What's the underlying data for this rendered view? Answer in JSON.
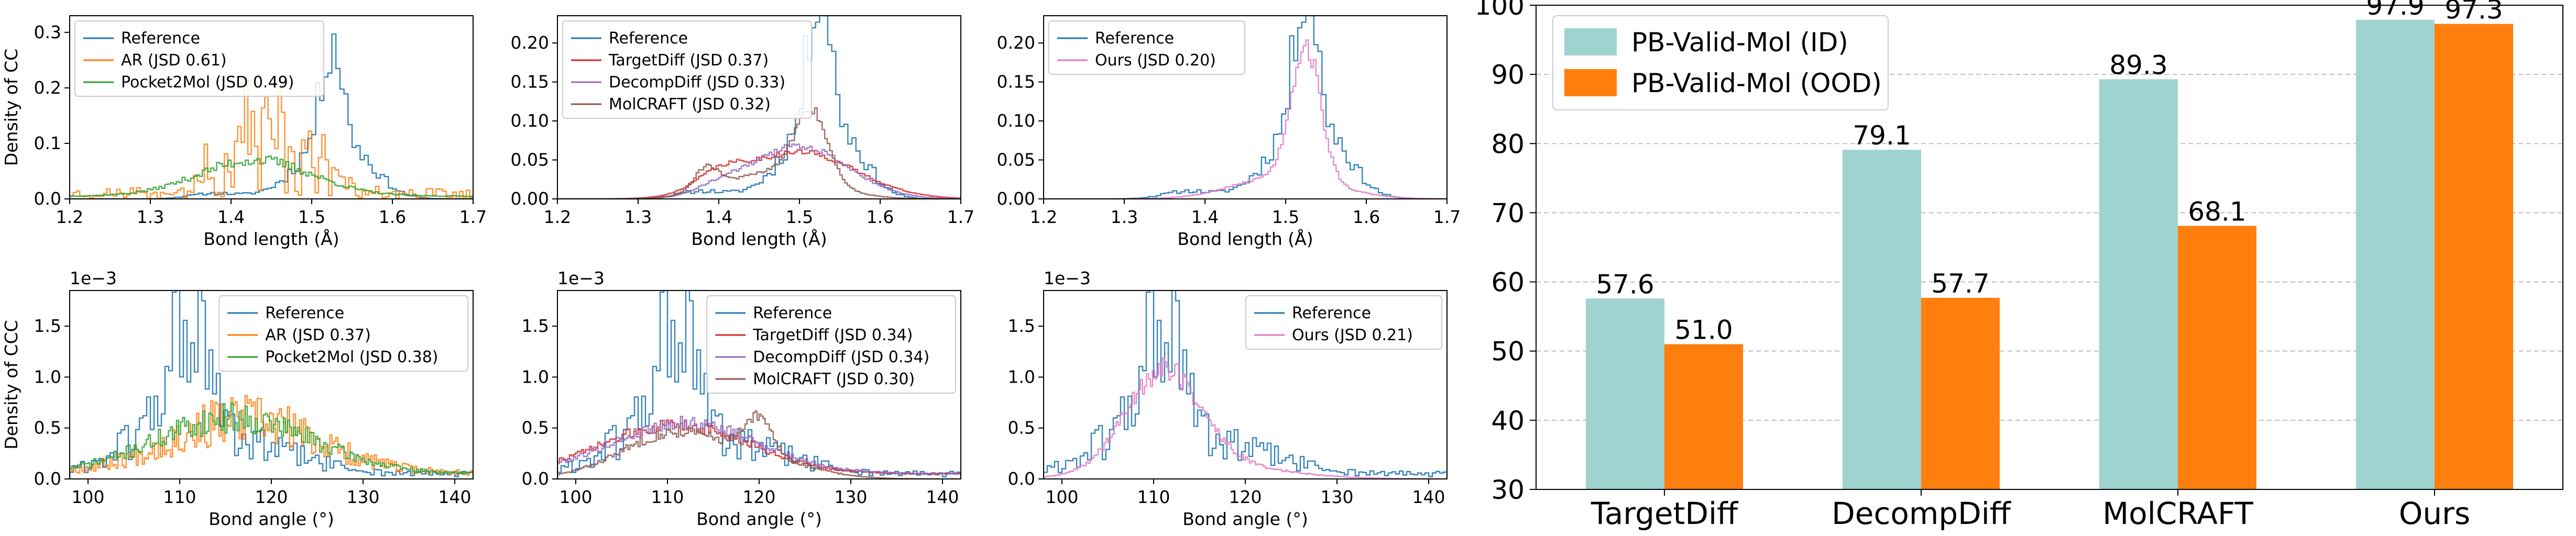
{
  "chart_data": [
    {
      "id": "cc_baselines",
      "type": "histogram-step",
      "ylabel": "Density of CC",
      "xlabel": "Bond length (Å)",
      "xlim": [
        1.2,
        1.7
      ],
      "ylim": [
        0,
        0.33
      ],
      "yticks": [
        "0.0",
        "0.1",
        "0.2",
        "0.3"
      ],
      "xticks": [
        "1.2",
        "1.3",
        "1.4",
        "1.5",
        "1.6",
        "1.7"
      ],
      "offset_text": "",
      "legend_position": "upper left",
      "series": [
        {
          "name": "Reference",
          "color": "#1f77b4",
          "shape": "ref_cc"
        },
        {
          "name": "AR (JSD 0.61)",
          "color": "#ff7f0e",
          "shape": "ar_cc"
        },
        {
          "name": "Pocket2Mol (JSD 0.49)",
          "color": "#2ca02c",
          "shape": "p2m_cc"
        }
      ]
    },
    {
      "id": "cc_diffusion",
      "type": "histogram-step",
      "ylabel": "",
      "xlabel": "Bond length (Å)",
      "xlim": [
        1.2,
        1.7
      ],
      "ylim": [
        0,
        0.235
      ],
      "yticks": [
        "0.00",
        "0.05",
        "0.10",
        "0.15",
        "0.20"
      ],
      "xticks": [
        "1.2",
        "1.3",
        "1.4",
        "1.5",
        "1.6",
        "1.7"
      ],
      "offset_text": "",
      "legend_position": "upper left",
      "series": [
        {
          "name": "Reference",
          "color": "#1f77b4",
          "shape": "ref_cc"
        },
        {
          "name": "TargetDiff (JSD 0.37)",
          "color": "#d62728",
          "shape": "td_cc"
        },
        {
          "name": "DecompDiff (JSD 0.33)",
          "color": "#9467bd",
          "shape": "dd_cc"
        },
        {
          "name": "MolCRAFT (JSD 0.32)",
          "color": "#8c564b",
          "shape": "mc_cc"
        }
      ]
    },
    {
      "id": "cc_ours",
      "type": "histogram-step",
      "ylabel": "",
      "xlabel": "Bond length (Å)",
      "xlim": [
        1.2,
        1.7
      ],
      "ylim": [
        0,
        0.235
      ],
      "yticks": [
        "0.00",
        "0.05",
        "0.10",
        "0.15",
        "0.20"
      ],
      "xticks": [
        "1.2",
        "1.3",
        "1.4",
        "1.5",
        "1.6",
        "1.7"
      ],
      "offset_text": "",
      "legend_position": "upper left",
      "series": [
        {
          "name": "Reference",
          "color": "#1f77b4",
          "shape": "ref_cc"
        },
        {
          "name": "Ours (JSD 0.20)",
          "color": "#e377c2",
          "shape": "ours_cc"
        }
      ]
    },
    {
      "id": "ccc_baselines",
      "type": "histogram-step",
      "ylabel": "Density of CCC",
      "xlabel": "Bond angle (°)",
      "xlim": [
        98,
        142
      ],
      "ylim": [
        0,
        0.00185
      ],
      "yticks": [
        "0.0",
        "0.5",
        "1.0",
        "1.5"
      ],
      "xticks": [
        "100",
        "110",
        "120",
        "130",
        "140"
      ],
      "offset_text": "1e−3",
      "legend_position": "upper right",
      "series": [
        {
          "name": "Reference",
          "color": "#1f77b4",
          "shape": "ref_ccc"
        },
        {
          "name": "AR (JSD 0.37)",
          "color": "#ff7f0e",
          "shape": "ar_ccc"
        },
        {
          "name": "Pocket2Mol (JSD 0.38)",
          "color": "#2ca02c",
          "shape": "p2m_ccc"
        }
      ]
    },
    {
      "id": "ccc_diffusion",
      "type": "histogram-step",
      "ylabel": "",
      "xlabel": "Bond angle (°)",
      "xlim": [
        98,
        142
      ],
      "ylim": [
        0,
        0.00185
      ],
      "yticks": [
        "0.0",
        "0.5",
        "1.0",
        "1.5"
      ],
      "xticks": [
        "100",
        "110",
        "120",
        "130",
        "140"
      ],
      "offset_text": "1e−3",
      "legend_position": "upper right",
      "series": [
        {
          "name": "Reference",
          "color": "#1f77b4",
          "shape": "ref_ccc"
        },
        {
          "name": "TargetDiff (JSD 0.34)",
          "color": "#d62728",
          "shape": "td_ccc"
        },
        {
          "name": "DecompDiff (JSD 0.34)",
          "color": "#9467bd",
          "shape": "dd_ccc"
        },
        {
          "name": "MolCRAFT (JSD 0.30)",
          "color": "#8c564b",
          "shape": "mc_ccc"
        }
      ]
    },
    {
      "id": "ccc_ours",
      "type": "histogram-step",
      "ylabel": "",
      "xlabel": "Bond angle (°)",
      "xlim": [
        98,
        142
      ],
      "ylim": [
        0,
        0.00185
      ],
      "yticks": [
        "0.0",
        "0.5",
        "1.0",
        "1.5"
      ],
      "xticks": [
        "100",
        "110",
        "120",
        "130",
        "140"
      ],
      "offset_text": "1e−3",
      "legend_position": "upper right",
      "series": [
        {
          "name": "Reference",
          "color": "#1f77b4",
          "shape": "ref_ccc"
        },
        {
          "name": "Ours (JSD 0.21)",
          "color": "#e377c2",
          "shape": "ours_ccc"
        }
      ]
    },
    {
      "id": "pb_valid",
      "type": "bar",
      "categories": [
        "TargetDiff",
        "DecompDiff",
        "MolCRAFT",
        "Ours"
      ],
      "ylim": [
        30,
        100
      ],
      "yticks": [
        "30",
        "40",
        "50",
        "60",
        "70",
        "80",
        "90",
        "100"
      ],
      "grid": "horizontal dashed",
      "legend_position": "upper left",
      "series": [
        {
          "name": "PB-Valid-Mol (ID)",
          "color": "#9fd3d0",
          "values": [
            57.6,
            79.1,
            89.3,
            97.9
          ],
          "labels": [
            "57.6",
            "79.1",
            "89.3",
            "97.9"
          ]
        },
        {
          "name": "PB-Valid-Mol (OOD)",
          "color": "#ff7f0e",
          "values": [
            51.0,
            57.7,
            68.1,
            97.3
          ],
          "labels": [
            "51.0",
            "57.7",
            "68.1",
            "97.3"
          ]
        }
      ]
    }
  ]
}
